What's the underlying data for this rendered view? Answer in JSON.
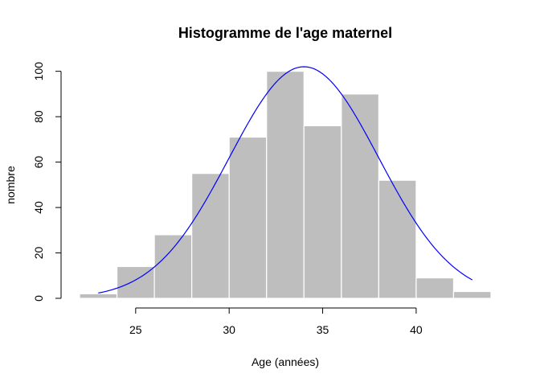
{
  "chart_data": {
    "type": "bar",
    "title": "Histogramme de l'age maternel",
    "xlabel": "Age (années)",
    "ylabel": "nombre",
    "bins": [
      {
        "from": 22,
        "to": 24,
        "count": 2
      },
      {
        "from": 24,
        "to": 26,
        "count": 14
      },
      {
        "from": 26,
        "to": 28,
        "count": 28
      },
      {
        "from": 28,
        "to": 30,
        "count": 55
      },
      {
        "from": 30,
        "to": 32,
        "count": 71
      },
      {
        "from": 32,
        "to": 34,
        "count": 100
      },
      {
        "from": 34,
        "to": 36,
        "count": 76
      },
      {
        "from": 36,
        "to": 38,
        "count": 90
      },
      {
        "from": 38,
        "to": 40,
        "count": 52
      },
      {
        "from": 40,
        "to": 42,
        "count": 9
      },
      {
        "from": 42,
        "to": 44,
        "count": 3
      }
    ],
    "density_curve": {
      "type": "normal",
      "mean": 34,
      "sd": 4,
      "peak": 102,
      "x_range": [
        23,
        43
      ],
      "color": "#0000ff"
    },
    "bar_color": "#bebebe",
    "bar_border_color": "#ffffff",
    "xlim": [
      22,
      44
    ],
    "ylim": [
      0,
      102
    ],
    "xticks": [
      "25",
      "30",
      "35",
      "40"
    ],
    "yticks": [
      "0",
      "20",
      "40",
      "60",
      "80",
      "100"
    ],
    "grid": false,
    "legend": "none"
  }
}
